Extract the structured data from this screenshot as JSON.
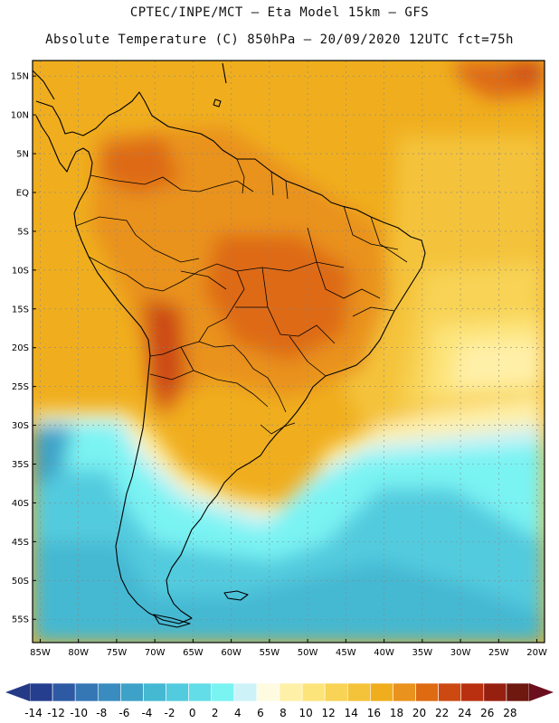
{
  "header": {
    "title_line1": "CPTEC/INPE/MCT –  Eta Model 15km – GFS",
    "title_line2": "Absolute Temperature (C) 850hPa – 20/09/2020 12UTC fct=75h"
  },
  "map": {
    "lat_labels": [
      "15N",
      "10N",
      "5N",
      "EQ",
      "5S",
      "10S",
      "15S",
      "20S",
      "25S",
      "30S",
      "35S",
      "40S",
      "45S",
      "50S",
      "55S"
    ],
    "lat_values": [
      15,
      10,
      5,
      0,
      -5,
      -10,
      -15,
      -20,
      -25,
      -30,
      -35,
      -40,
      -45,
      -50,
      -55
    ],
    "lon_labels": [
      "85W",
      "80W",
      "75W",
      "70W",
      "65W",
      "60W",
      "55W",
      "50W",
      "45W",
      "40W",
      "35W",
      "30W",
      "25W",
      "20W"
    ],
    "lon_values": [
      -85,
      -80,
      -75,
      -70,
      -65,
      -60,
      -55,
      -50,
      -45,
      -40,
      -35,
      -30,
      -25,
      -20
    ],
    "lat_range": [
      -58,
      17
    ],
    "lon_range": [
      -86,
      -19
    ],
    "grid": true
  },
  "colorbar": {
    "labels": [
      "-14",
      "-12",
      "-10",
      "-8",
      "-6",
      "-4",
      "-2",
      "0",
      "2",
      "4",
      "6",
      "8",
      "10",
      "12",
      "14",
      "16",
      "18",
      "20",
      "22",
      "24",
      "26",
      "28"
    ],
    "colors": [
      "#253e8e",
      "#2d5aa3",
      "#3576b5",
      "#3a8cc0",
      "#3ea2c8",
      "#45b8d2",
      "#52cbde",
      "#63dde8",
      "#7af3f3",
      "#cdf3f8",
      "#fffbe0",
      "#fff0a8",
      "#fde47a",
      "#f8d355",
      "#f4c33a",
      "#f0ae1e",
      "#e9921e",
      "#de6a12",
      "#cc4a12",
      "#b8300f",
      "#962010",
      "#6e1810"
    ],
    "low_arrow_color": "#253a86",
    "high_arrow_color": "#6b0f1e"
  }
}
